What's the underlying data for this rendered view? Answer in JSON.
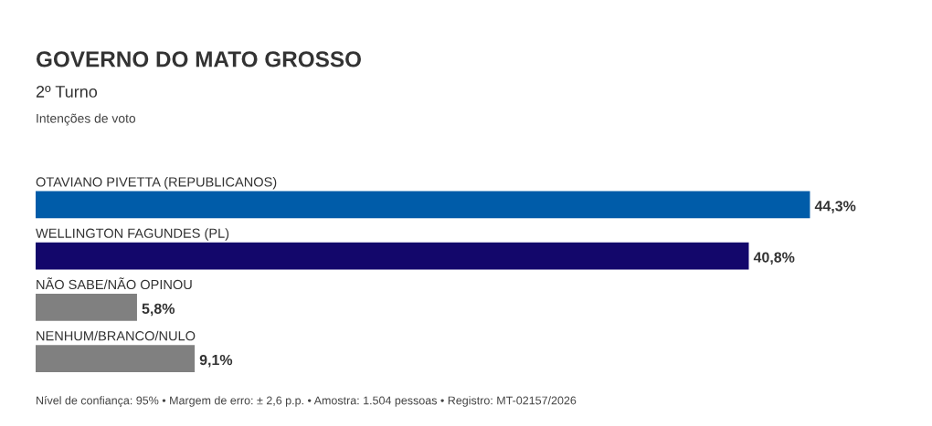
{
  "chart_data": {
    "type": "bar",
    "orientation": "horizontal",
    "title": "GOVERNO DO MATO GROSSO",
    "subtitle": "2º Turno",
    "categories": [
      "OTAVIANO PIVETTA (REPUBLICANOS)",
      "WELLINGTON FAGUNDES (PL)",
      "NÃO SABE/NÃO OPINOU",
      "NENHUM/BRANCO/NULO"
    ],
    "values": [
      44.3,
      40.8,
      5.8,
      9.1
    ],
    "colors": [
      "#005ca9",
      "#13076b",
      "#808080",
      "#808080"
    ],
    "value_labels": [
      "44,3%",
      "40,8%",
      "5,8%",
      "9,1%"
    ],
    "annotations": [
      "Intenções de voto",
      "Nível de confiança: 95% • Margem de erro: ± 2,6 p.p. • Amostra: 1.504 pessoas • Registro: MT-02157/2026"
    ]
  }
}
